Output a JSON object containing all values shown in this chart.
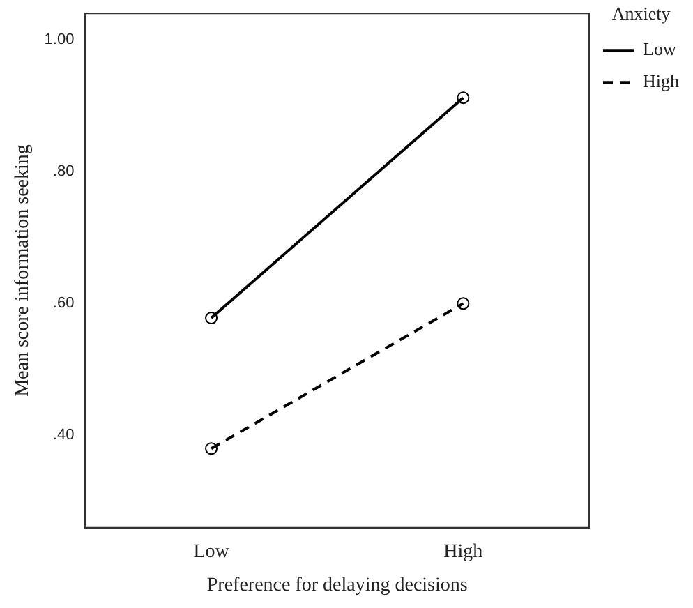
{
  "chart_data": {
    "type": "line",
    "xlabel": "Preference for delaying decisions",
    "ylabel": "Mean score information seeking",
    "legend_title": "Anxiety",
    "categories": [
      "Low",
      "High"
    ],
    "series": [
      {
        "name": "Low",
        "color": "#000000",
        "values": [
          0.578,
          0.912
        ],
        "line_style": "solid"
      },
      {
        "name": "High",
        "color": "#000000",
        "values": [
          0.38,
          0.6
        ],
        "line_style": "dashed"
      }
    ],
    "ylim": [
      0.26,
      1.04
    ],
    "yticks": [
      {
        "value": 0.4,
        "label": ".40"
      },
      {
        "value": 0.6,
        "label": ".60"
      },
      {
        "value": 0.8,
        "label": ".80"
      },
      {
        "value": 1.0,
        "label": "1.00"
      }
    ],
    "grid": false,
    "legend": "top right",
    "marker": "circle"
  }
}
